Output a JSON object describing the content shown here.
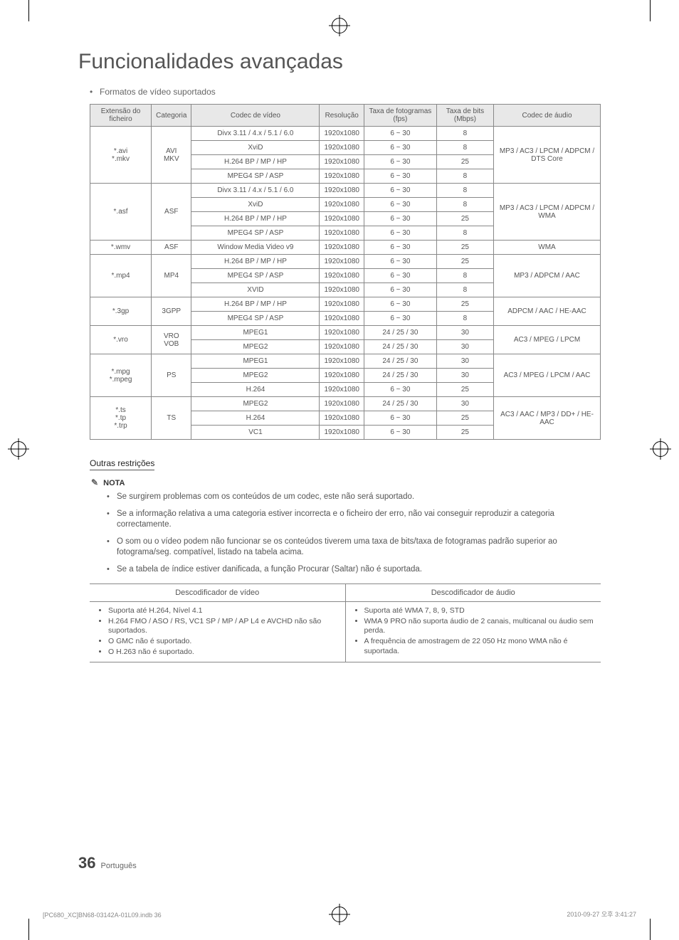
{
  "title": "Funcionalidades avançadas",
  "intro_bullet": "Formatos de vídeo suportados",
  "table_headers": {
    "ext": "Extensão do ficheiro",
    "cat": "Categoria",
    "vcodec": "Codec de vídeo",
    "res": "Resolução",
    "fps": "Taxa de fotogramas (fps)",
    "bitrate": "Taxa de bits (Mbps)",
    "acodec": "Codec de áudio"
  },
  "groups": [
    {
      "ext": "*.avi\n*.mkv",
      "cat": "AVI\nMKV",
      "acodec": "MP3 / AC3 / LPCM / ADPCM / DTS Core",
      "rows": [
        {
          "vcodec": "Divx 3.11 / 4.x / 5.1 / 6.0",
          "res": "1920x1080",
          "fps": "6 ~ 30",
          "br": "8"
        },
        {
          "vcodec": "XviD",
          "res": "1920x1080",
          "fps": "6 ~ 30",
          "br": "8"
        },
        {
          "vcodec": "H.264 BP / MP / HP",
          "res": "1920x1080",
          "fps": "6 ~ 30",
          "br": "25"
        },
        {
          "vcodec": "MPEG4 SP / ASP",
          "res": "1920x1080",
          "fps": "6 ~ 30",
          "br": "8"
        }
      ]
    },
    {
      "ext": "*.asf",
      "cat": "ASF",
      "acodec": "MP3 / AC3 / LPCM / ADPCM / WMA",
      "rows": [
        {
          "vcodec": "Divx 3.11 / 4.x / 5.1 / 6.0",
          "res": "1920x1080",
          "fps": "6 ~ 30",
          "br": "8"
        },
        {
          "vcodec": "XviD",
          "res": "1920x1080",
          "fps": "6 ~ 30",
          "br": "8"
        },
        {
          "vcodec": "H.264 BP / MP / HP",
          "res": "1920x1080",
          "fps": "6 ~ 30",
          "br": "25"
        },
        {
          "vcodec": "MPEG4 SP / ASP",
          "res": "1920x1080",
          "fps": "6 ~ 30",
          "br": "8"
        }
      ]
    },
    {
      "ext": "*.wmv",
      "cat": "ASF",
      "acodec": "WMA",
      "rows": [
        {
          "vcodec": "Window Media Video v9",
          "res": "1920x1080",
          "fps": "6 ~ 30",
          "br": "25"
        }
      ]
    },
    {
      "ext": "*.mp4",
      "cat": "MP4",
      "acodec": "MP3 / ADPCM / AAC",
      "rows": [
        {
          "vcodec": "H.264 BP / MP / HP",
          "res": "1920x1080",
          "fps": "6 ~ 30",
          "br": "25"
        },
        {
          "vcodec": "MPEG4 SP / ASP",
          "res": "1920x1080",
          "fps": "6 ~ 30",
          "br": "8"
        },
        {
          "vcodec": "XVID",
          "res": "1920x1080",
          "fps": "6 ~ 30",
          "br": "8"
        }
      ]
    },
    {
      "ext": "*.3gp",
      "cat": "3GPP",
      "acodec": "ADPCM / AAC / HE-AAC",
      "rows": [
        {
          "vcodec": "H.264 BP / MP / HP",
          "res": "1920x1080",
          "fps": "6 ~ 30",
          "br": "25"
        },
        {
          "vcodec": "MPEG4 SP / ASP",
          "res": "1920x1080",
          "fps": "6 ~ 30",
          "br": "8"
        }
      ]
    },
    {
      "ext": "*.vro",
      "cat": "VRO\nVOB",
      "acodec": "AC3 / MPEG / LPCM",
      "rows": [
        {
          "vcodec": "MPEG1",
          "res": "1920x1080",
          "fps": "24 / 25 / 30",
          "br": "30"
        },
        {
          "vcodec": "MPEG2",
          "res": "1920x1080",
          "fps": "24 / 25 / 30",
          "br": "30"
        }
      ]
    },
    {
      "ext": "*.mpg\n*.mpeg",
      "cat": "PS",
      "acodec": "AC3 / MPEG / LPCM / AAC",
      "rows": [
        {
          "vcodec": "MPEG1",
          "res": "1920x1080",
          "fps": "24 / 25 / 30",
          "br": "30"
        },
        {
          "vcodec": "MPEG2",
          "res": "1920x1080",
          "fps": "24 / 25 / 30",
          "br": "30"
        },
        {
          "vcodec": "H.264",
          "res": "1920x1080",
          "fps": "6 ~ 30",
          "br": "25"
        }
      ]
    },
    {
      "ext": "*.ts\n*.tp\n*.trp",
      "cat": "TS",
      "acodec": "AC3 / AAC / MP3 / DD+ / HE-AAC",
      "rows": [
        {
          "vcodec": "MPEG2",
          "res": "1920x1080",
          "fps": "24 / 25 / 30",
          "br": "30"
        },
        {
          "vcodec": "H.264",
          "res": "1920x1080",
          "fps": "6 ~ 30",
          "br": "25"
        },
        {
          "vcodec": "VC1",
          "res": "1920x1080",
          "fps": "6 ~ 30",
          "br": "25"
        }
      ]
    }
  ],
  "restrictions": {
    "heading": "Outras restrições",
    "nota_label": "NOTA",
    "notes": [
      "Se surgirem problemas com os conteúdos de um codec, este não será suportado.",
      "Se a informação relativa a uma categoria estiver incorrecta e o ficheiro der erro, não vai conseguir reproduzir a categoria correctamente.",
      "O som ou o vídeo podem não funcionar se os conteúdos tiverem uma taxa de bits/taxa de fotogramas padrão superior ao fotograma/seg. compatível, listado na tabela acima.",
      "Se a tabela de índice estiver danificada, a função Procurar (Saltar) não é suportada."
    ]
  },
  "decoders": {
    "video_header": "Descodificador de vídeo",
    "audio_header": "Descodificador de áudio",
    "video_items": [
      "Suporta até H.264, Nível 4.1",
      "H.264 FMO / ASO / RS, VC1 SP / MP / AP L4 e AVCHD não são suportados.",
      "O GMC não é suportado.",
      "O H.263 não é suportado."
    ],
    "audio_items": [
      "Suporta até WMA 7, 8, 9, STD",
      "WMA 9 PRO não suporta áudio de 2 canais, multicanal ou áudio sem perda.",
      "A frequência de amostragem de 22 050 Hz mono WMA não é suportada."
    ]
  },
  "page_number": "36",
  "page_lang": "Português",
  "footer_left": "[PC680_XC]BN68-03142A-01L09.indb   36",
  "footer_right": "2010-09-27   오후 3:41:27"
}
